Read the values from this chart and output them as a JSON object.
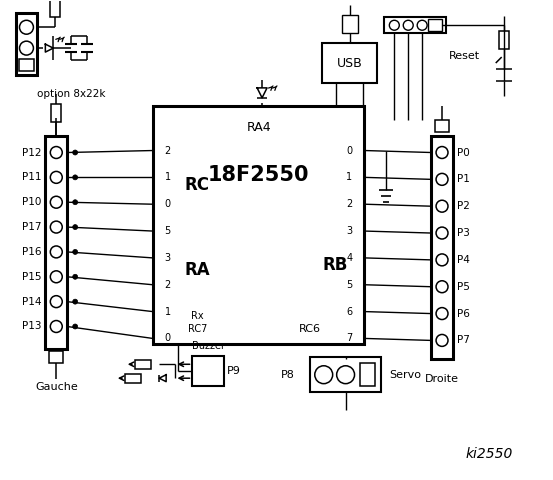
{
  "bg_color": "#ffffff",
  "lc": "#000000",
  "left_ports": [
    "P12",
    "P11",
    "P10",
    "P17",
    "P16",
    "P15",
    "P14",
    "P13"
  ],
  "right_ports": [
    "P0",
    "P1",
    "P2",
    "P3",
    "P4",
    "P5",
    "P6",
    "P7"
  ],
  "rc_pins": [
    "2",
    "1",
    "0",
    "5",
    "3",
    "2",
    "1",
    "0"
  ],
  "rb_pins": [
    "0",
    "1",
    "2",
    "3",
    "4",
    "5",
    "6",
    "7"
  ],
  "ki_label": "ki2550",
  "chip_label": "18F2550",
  "ra4_label": "RA4",
  "rc_label": "RC",
  "ra_label": "RA",
  "rb_label": "RB",
  "rx_label": "Rx",
  "rc7_label": "RC7",
  "rc6_label": "RC6",
  "gauche_label": "Gauche",
  "droite_label": "Droite",
  "buzzer_label": "Buzzer",
  "p8_label": "P8",
  "p9_label": "P9",
  "servo_label": "Servo",
  "usb_label": "USB",
  "reset_label": "Reset",
  "option_label": "option 8x22k"
}
